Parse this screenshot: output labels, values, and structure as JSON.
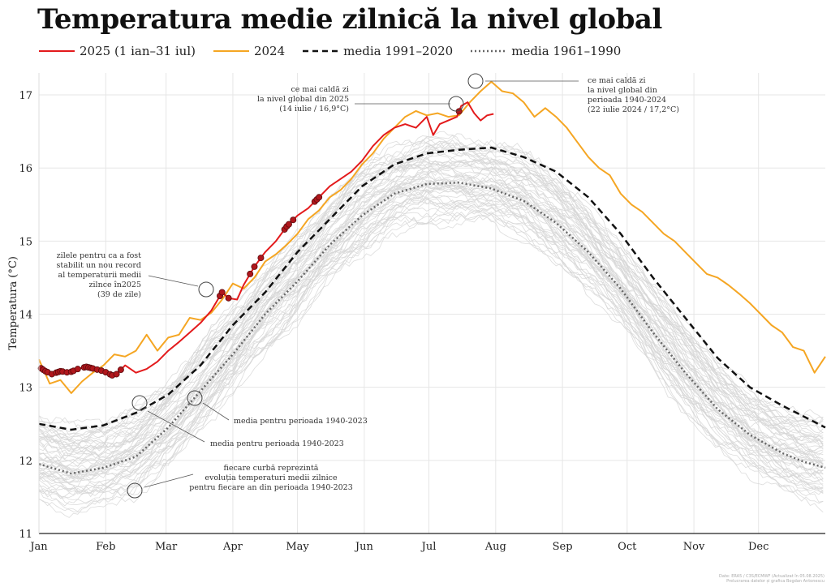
{
  "title": "Temperatura medie zilnică la nivel global",
  "legend": [
    {
      "label": "2025 (1 ian–31 iul)",
      "color": "#e31a1c",
      "style": "solid"
    },
    {
      "label": "2024",
      "color": "#f5a623",
      "style": "solid"
    },
    {
      "label": "media 1991–2020",
      "color": "#111111",
      "style": "dashed"
    },
    {
      "label": "media 1961–1990",
      "color": "#666666",
      "style": "dotted"
    }
  ],
  "chart_data": {
    "type": "line",
    "ylabel": "Temperatura (°C)",
    "xlabel": "",
    "ylim": [
      11,
      17.3
    ],
    "xlim": [
      0,
      365
    ],
    "yticks": [
      11,
      12,
      13,
      14,
      15,
      16,
      17
    ],
    "months": [
      "Jan",
      "Feb",
      "Mar",
      "Apr",
      "May",
      "Jun",
      "Jul",
      "Aug",
      "Sep",
      "Oct",
      "Nov",
      "Dec"
    ],
    "month_starts": [
      0,
      31,
      59,
      90,
      120,
      151,
      181,
      212,
      243,
      273,
      304,
      334
    ],
    "grid": true,
    "series": [
      {
        "name": "2024",
        "color": "#f5a623",
        "style": "solid",
        "points": [
          [
            0,
            13.38
          ],
          [
            5,
            13.05
          ],
          [
            10,
            13.1
          ],
          [
            15,
            12.92
          ],
          [
            20,
            13.08
          ],
          [
            25,
            13.2
          ],
          [
            30,
            13.3
          ],
          [
            35,
            13.45
          ],
          [
            40,
            13.42
          ],
          [
            45,
            13.5
          ],
          [
            50,
            13.72
          ],
          [
            55,
            13.5
          ],
          [
            60,
            13.68
          ],
          [
            65,
            13.72
          ],
          [
            70,
            13.95
          ],
          [
            75,
            13.92
          ],
          [
            80,
            14.02
          ],
          [
            85,
            14.2
          ],
          [
            90,
            14.42
          ],
          [
            95,
            14.35
          ],
          [
            100,
            14.5
          ],
          [
            105,
            14.72
          ],
          [
            110,
            14.82
          ],
          [
            115,
            14.95
          ],
          [
            120,
            15.1
          ],
          [
            125,
            15.3
          ],
          [
            130,
            15.42
          ],
          [
            135,
            15.6
          ],
          [
            140,
            15.7
          ],
          [
            145,
            15.85
          ],
          [
            150,
            16.05
          ],
          [
            155,
            16.2
          ],
          [
            160,
            16.4
          ],
          [
            165,
            16.55
          ],
          [
            170,
            16.7
          ],
          [
            175,
            16.78
          ],
          [
            180,
            16.72
          ],
          [
            185,
            16.75
          ],
          [
            190,
            16.7
          ],
          [
            195,
            16.72
          ],
          [
            200,
            16.9
          ],
          [
            205,
            17.05
          ],
          [
            210,
            17.18
          ],
          [
            215,
            17.05
          ],
          [
            220,
            17.02
          ],
          [
            225,
            16.9
          ],
          [
            230,
            16.7
          ],
          [
            235,
            16.82
          ],
          [
            240,
            16.7
          ],
          [
            245,
            16.55
          ],
          [
            250,
            16.35
          ],
          [
            255,
            16.15
          ],
          [
            260,
            16.0
          ],
          [
            265,
            15.9
          ],
          [
            270,
            15.65
          ],
          [
            275,
            15.5
          ],
          [
            280,
            15.4
          ],
          [
            285,
            15.25
          ],
          [
            290,
            15.1
          ],
          [
            295,
            15.0
          ],
          [
            300,
            14.85
          ],
          [
            305,
            14.7
          ],
          [
            310,
            14.55
          ],
          [
            315,
            14.5
          ],
          [
            320,
            14.4
          ],
          [
            325,
            14.28
          ],
          [
            330,
            14.15
          ],
          [
            335,
            14.0
          ],
          [
            340,
            13.85
          ],
          [
            345,
            13.75
          ],
          [
            350,
            13.55
          ],
          [
            355,
            13.5
          ],
          [
            360,
            13.2
          ],
          [
            365,
            13.42
          ]
        ]
      },
      {
        "name": "2025 (1 ian–31 iul)",
        "color": "#e31a1c",
        "style": "solid",
        "points": [
          [
            0,
            13.28
          ],
          [
            3,
            13.22
          ],
          [
            6,
            13.18
          ],
          [
            10,
            13.22
          ],
          [
            14,
            13.2
          ],
          [
            18,
            13.25
          ],
          [
            22,
            13.28
          ],
          [
            26,
            13.25
          ],
          [
            30,
            13.22
          ],
          [
            35,
            13.15
          ],
          [
            40,
            13.3
          ],
          [
            45,
            13.2
          ],
          [
            50,
            13.25
          ],
          [
            55,
            13.35
          ],
          [
            60,
            13.5
          ],
          [
            65,
            13.62
          ],
          [
            70,
            13.75
          ],
          [
            75,
            13.88
          ],
          [
            80,
            14.05
          ],
          [
            85,
            14.3
          ],
          [
            88,
            14.22
          ],
          [
            92,
            14.2
          ],
          [
            95,
            14.4
          ],
          [
            100,
            14.65
          ],
          [
            105,
            14.85
          ],
          [
            110,
            15.0
          ],
          [
            115,
            15.2
          ],
          [
            120,
            15.35
          ],
          [
            125,
            15.45
          ],
          [
            130,
            15.6
          ],
          [
            135,
            15.75
          ],
          [
            140,
            15.85
          ],
          [
            145,
            15.95
          ],
          [
            150,
            16.1
          ],
          [
            155,
            16.3
          ],
          [
            160,
            16.45
          ],
          [
            165,
            16.55
          ],
          [
            170,
            16.6
          ],
          [
            175,
            16.55
          ],
          [
            180,
            16.7
          ],
          [
            183,
            16.45
          ],
          [
            186,
            16.6
          ],
          [
            190,
            16.65
          ],
          [
            194,
            16.7
          ],
          [
            196,
            16.85
          ],
          [
            199,
            16.9
          ],
          [
            202,
            16.75
          ],
          [
            205,
            16.65
          ],
          [
            208,
            16.72
          ],
          [
            211,
            16.74
          ]
        ]
      },
      {
        "name": "media 1991–2020",
        "color": "#111111",
        "style": "dashed",
        "points": [
          [
            0,
            12.5
          ],
          [
            15,
            12.42
          ],
          [
            30,
            12.48
          ],
          [
            45,
            12.65
          ],
          [
            60,
            12.9
          ],
          [
            75,
            13.3
          ],
          [
            90,
            13.85
          ],
          [
            105,
            14.3
          ],
          [
            120,
            14.85
          ],
          [
            135,
            15.3
          ],
          [
            150,
            15.75
          ],
          [
            165,
            16.05
          ],
          [
            180,
            16.2
          ],
          [
            195,
            16.25
          ],
          [
            210,
            16.28
          ],
          [
            225,
            16.15
          ],
          [
            240,
            15.95
          ],
          [
            255,
            15.6
          ],
          [
            270,
            15.1
          ],
          [
            285,
            14.5
          ],
          [
            300,
            13.95
          ],
          [
            315,
            13.4
          ],
          [
            330,
            13.0
          ],
          [
            345,
            12.75
          ],
          [
            355,
            12.6
          ],
          [
            365,
            12.45
          ]
        ]
      },
      {
        "name": "media 1961–1990",
        "color": "#666666",
        "style": "dotted",
        "points": [
          [
            0,
            11.95
          ],
          [
            15,
            11.82
          ],
          [
            30,
            11.9
          ],
          [
            45,
            12.05
          ],
          [
            60,
            12.45
          ],
          [
            75,
            12.95
          ],
          [
            90,
            13.45
          ],
          [
            105,
            14.0
          ],
          [
            120,
            14.45
          ],
          [
            135,
            14.95
          ],
          [
            150,
            15.35
          ],
          [
            165,
            15.65
          ],
          [
            180,
            15.78
          ],
          [
            195,
            15.8
          ],
          [
            210,
            15.72
          ],
          [
            225,
            15.55
          ],
          [
            240,
            15.25
          ],
          [
            255,
            14.85
          ],
          [
            270,
            14.35
          ],
          [
            285,
            13.75
          ],
          [
            300,
            13.2
          ],
          [
            315,
            12.7
          ],
          [
            330,
            12.35
          ],
          [
            345,
            12.1
          ],
          [
            355,
            11.98
          ],
          [
            365,
            11.9
          ]
        ]
      }
    ],
    "spaghetti": {
      "name": "ani 1940–2023",
      "color": "#d6d6d6",
      "count": 60
    },
    "record_days_2025": [
      1,
      2,
      3,
      4,
      6,
      8,
      9,
      10,
      11,
      13,
      15,
      16,
      18,
      21,
      22,
      23,
      24,
      25,
      27,
      29,
      31,
      33,
      34,
      36,
      38,
      84,
      85,
      88,
      98,
      100,
      103,
      114,
      115,
      116,
      118,
      128,
      129,
      130,
      195
    ]
  },
  "annotations": [
    {
      "lines": [
        "ce mai caldă zi",
        "la nivel global din 2025",
        "(14 iulie / 16,9°C)"
      ],
      "align": "end"
    },
    {
      "lines": [
        "ce mai caldă zi",
        "la nivel global din",
        "perioada 1940-2024",
        "(22 iulie 2024 / 17,2°C)"
      ],
      "align": "start"
    },
    {
      "lines": [
        "zilele pentru ca a fost",
        "stabilit un nou record",
        "al temperaturii medii",
        "zilnce în2025",
        "(39 de zile)"
      ],
      "align": "end"
    },
    {
      "lines": [
        "media pentru perioada 1940-2023"
      ],
      "align": "start"
    },
    {
      "lines": [
        "media pentru perioada 1940-2023"
      ],
      "align": "start"
    },
    {
      "lines": [
        "fiecare curbă reprezintă",
        "evoluția temperaturi medii zilnice",
        "pentru fiecare an din perioada 1940-2023"
      ],
      "align": "middle"
    }
  ],
  "credit": [
    "Date: ERA5 / C3S/ECMWF (Actualizat în 05.08.2025)",
    "Prelucrarea datelor și grafica Bogdan Antonescu"
  ]
}
